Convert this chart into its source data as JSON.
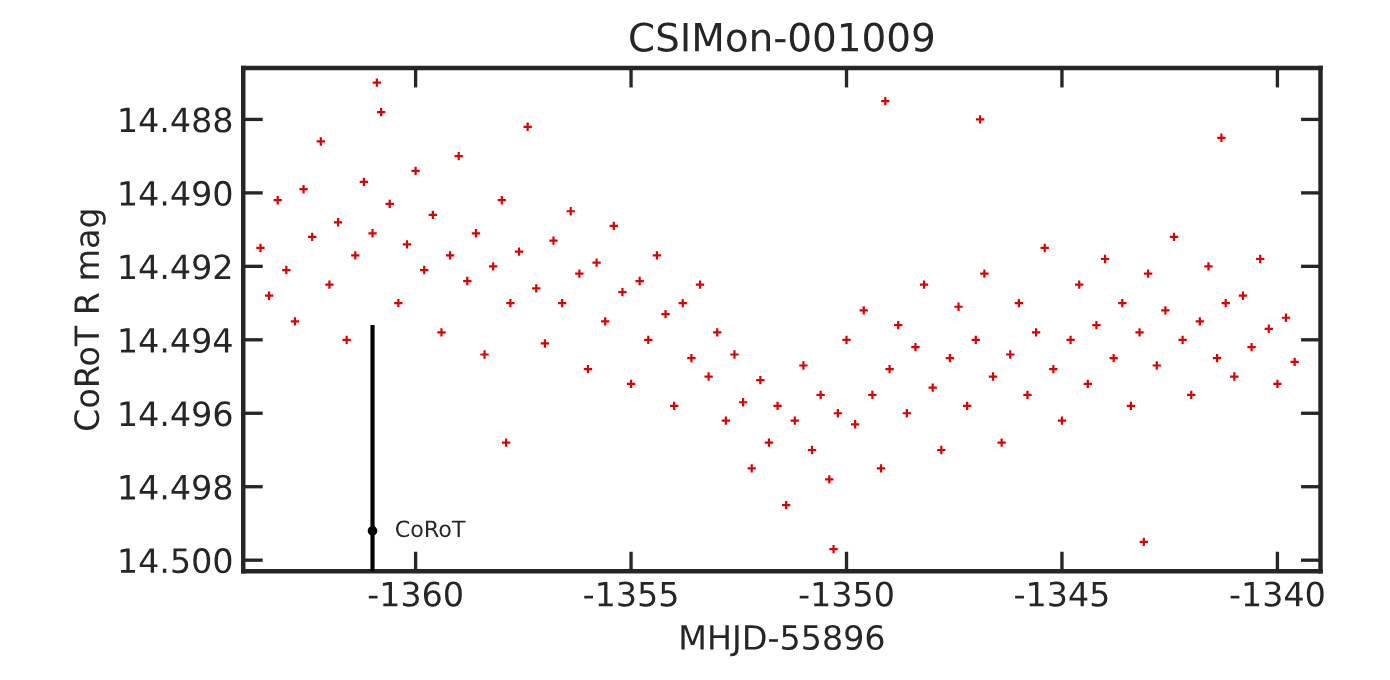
{
  "chart_data": {
    "type": "scatter",
    "title": "CSIMon-001009",
    "xlabel": "MHJD-55896",
    "ylabel": "CoRoT R mag",
    "xlim": [
      -1364,
      -1339
    ],
    "xticks": [
      -1360,
      -1355,
      -1350,
      -1345,
      -1340
    ],
    "ylim": [
      14.5003,
      14.4866
    ],
    "yticks": [
      {
        "value": 14.488,
        "label": "14.488"
      },
      {
        "value": 14.49,
        "label": "14.490"
      },
      {
        "value": 14.492,
        "label": "14.492"
      },
      {
        "value": 14.494,
        "label": "14.494"
      },
      {
        "value": 14.496,
        "label": "14.496"
      },
      {
        "value": 14.498,
        "label": "14.498"
      },
      {
        "value": 14.5,
        "label": "14.500"
      }
    ],
    "marker": "cross",
    "grid": false,
    "annotations": [
      {
        "text": "CoRoT",
        "x": -1361,
        "y": 14.4992
      }
    ],
    "series": [
      {
        "color": "#e00000",
        "x": [
          -1363.6,
          -1363.4,
          -1363.2,
          -1363.0,
          -1362.8,
          -1362.6,
          -1362.4,
          -1362.2,
          -1362.0,
          -1361.8,
          -1361.6,
          -1361.4,
          -1361.2,
          -1361.0,
          -1360.8,
          -1360.6,
          -1360.4,
          -1360.2,
          -1360.0,
          -1359.8,
          -1359.6,
          -1359.4,
          -1359.2,
          -1359.0,
          -1358.8,
          -1358.6,
          -1358.4,
          -1358.2,
          -1358.0,
          -1357.8,
          -1357.6,
          -1357.4,
          -1357.2,
          -1357.0,
          -1356.8,
          -1356.6,
          -1356.4,
          -1356.2,
          -1356.0,
          -1355.8,
          -1355.6,
          -1355.4,
          -1355.2,
          -1355.0,
          -1354.8,
          -1354.6,
          -1354.4,
          -1354.2,
          -1354.0,
          -1353.8,
          -1353.6,
          -1353.4,
          -1353.2,
          -1353.0,
          -1352.8,
          -1352.6,
          -1352.4,
          -1352.2,
          -1352.0,
          -1351.8,
          -1351.6,
          -1351.4,
          -1351.2,
          -1351.0,
          -1350.8,
          -1350.6,
          -1350.4,
          -1350.2,
          -1350.0,
          -1349.8,
          -1349.6,
          -1349.4,
          -1349.2,
          -1349.0,
          -1348.8,
          -1348.6,
          -1348.4,
          -1348.2,
          -1348.0,
          -1347.8,
          -1347.6,
          -1347.4,
          -1347.2,
          -1347.0,
          -1346.8,
          -1346.6,
          -1346.4,
          -1346.2,
          -1346.0,
          -1345.8,
          -1345.6,
          -1345.4,
          -1345.2,
          -1345.0,
          -1344.8,
          -1344.6,
          -1344.4,
          -1344.2,
          -1344.0,
          -1343.8,
          -1343.6,
          -1343.4,
          -1343.2,
          -1343.0,
          -1342.8,
          -1342.6,
          -1342.4,
          -1342.2,
          -1342.0,
          -1341.8,
          -1341.6,
          -1341.4,
          -1341.2,
          -1341.0,
          -1340.8,
          -1340.6,
          -1340.4,
          -1340.2,
          -1340.0,
          -1339.8,
          -1339.6,
          -1360.9,
          -1357.9,
          -1350.3,
          -1349.1,
          -1343.1,
          -1341.3,
          -1346.9
        ],
        "values": [
          14.4915,
          14.4928,
          14.4902,
          14.4921,
          14.4935,
          14.4899,
          14.4912,
          14.4886,
          14.4925,
          14.4908,
          14.494,
          14.4917,
          14.4897,
          14.4911,
          14.4878,
          14.4903,
          14.493,
          14.4914,
          14.4894,
          14.4921,
          14.4906,
          14.4938,
          14.4917,
          14.489,
          14.4924,
          14.4911,
          14.4944,
          14.492,
          14.4902,
          14.493,
          14.4916,
          14.4882,
          14.4926,
          14.4941,
          14.4913,
          14.493,
          14.4905,
          14.4922,
          14.4948,
          14.4919,
          14.4935,
          14.4909,
          14.4927,
          14.4952,
          14.4924,
          14.494,
          14.4917,
          14.4933,
          14.4958,
          14.493,
          14.4945,
          14.4925,
          14.495,
          14.4938,
          14.4962,
          14.4944,
          14.4957,
          14.4975,
          14.4951,
          14.4968,
          14.4958,
          14.4985,
          14.4962,
          14.4947,
          14.497,
          14.4955,
          14.4978,
          14.496,
          14.494,
          14.4963,
          14.4932,
          14.4955,
          14.4975,
          14.4948,
          14.4936,
          14.496,
          14.4942,
          14.4925,
          14.4953,
          14.497,
          14.4945,
          14.4931,
          14.4958,
          14.494,
          14.4922,
          14.495,
          14.4968,
          14.4944,
          14.493,
          14.4955,
          14.4938,
          14.4915,
          14.4948,
          14.4962,
          14.494,
          14.4925,
          14.4952,
          14.4936,
          14.4918,
          14.4945,
          14.493,
          14.4958,
          14.4938,
          14.4922,
          14.4947,
          14.4932,
          14.4912,
          14.494,
          14.4955,
          14.4935,
          14.492,
          14.4945,
          14.493,
          14.495,
          14.4928,
          14.4942,
          14.4918,
          14.4937,
          14.4952,
          14.4934,
          14.4946,
          14.487,
          14.4968,
          14.4997,
          14.4875,
          14.4995,
          14.4885,
          14.488
        ]
      },
      {
        "type": "scatter",
        "color": "#000000",
        "marker": "circle",
        "x": [
          -1361
        ],
        "values": [
          14.4992
        ],
        "errors": [
          [
            14.4936,
            14.5003
          ]
        ]
      }
    ]
  }
}
